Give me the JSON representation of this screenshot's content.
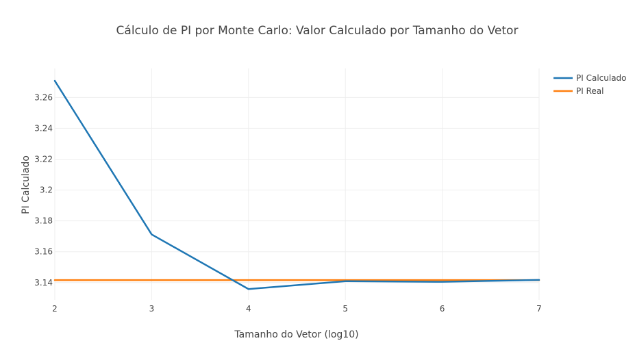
{
  "chart_data": {
    "type": "line",
    "title": "Cálculo de PI por Monte Carlo: Valor Calculado por Tamanho do Vetor",
    "xlabel": "Tamanho do Vetor (log10)",
    "ylabel": "PI Calculado",
    "x": [
      2,
      3,
      4,
      5,
      6,
      7
    ],
    "xlim": [
      2,
      7
    ],
    "ylim": [
      3.1288,
      3.2788
    ],
    "xticks": [
      2,
      3,
      4,
      5,
      6,
      7
    ],
    "yticks": [
      3.14,
      3.16,
      3.18,
      3.2,
      3.22,
      3.24,
      3.26
    ],
    "ytick_labels": [
      "3.14",
      "3.16",
      "3.18",
      "3.2",
      "3.22",
      "3.24",
      "3.26"
    ],
    "grid": true,
    "legend_position": "top-right",
    "series": [
      {
        "name": "PI Calculado",
        "color": "#1f77b4",
        "values": [
          3.2708,
          3.1712,
          3.1358,
          3.1409,
          3.1405,
          3.1417
        ]
      },
      {
        "name": "PI Real",
        "color": "#ff7f0e",
        "values": [
          3.14159,
          3.14159,
          3.14159,
          3.14159,
          3.14159,
          3.14159
        ]
      }
    ]
  }
}
